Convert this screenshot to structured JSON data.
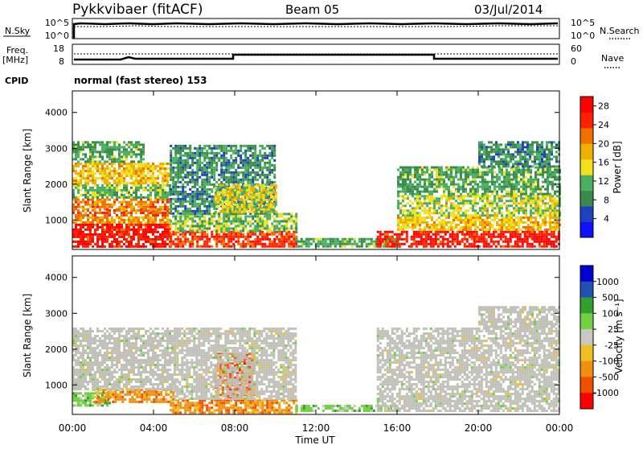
{
  "header": {
    "radar": "Pykkvibaer (fitACF)",
    "beam": "Beam 05",
    "date": "03/Jul/2014"
  },
  "top_panels": {
    "nsky_label": "N.Sky",
    "nsky_ticks": [
      "10^5",
      "10^0"
    ],
    "nsearch_ticks": [
      "10^5",
      "10^0"
    ],
    "nsearch_label": "N.Search",
    "freq_label": "Freq.",
    "freq_unit": "[MHz]",
    "freq_ticks": [
      "18",
      "8"
    ],
    "nave_ticks": [
      "60",
      "0"
    ],
    "nave_label": "Nave",
    "cpid_label": "CPID",
    "cpid_text": "normal (fast stereo) 153"
  },
  "colors": {
    "power_scale": [
      "#1010ff",
      "#2040c0",
      "#3a8a4a",
      "#48b060",
      "#f0e020",
      "#f0b000",
      "#f07000",
      "#ff2000",
      "#ff0000"
    ],
    "velocity_scale": [
      "#0000d0",
      "#2050b0",
      "#30a030",
      "#70d040",
      "#c8c8c0",
      "#f0c020",
      "#f09010",
      "#f05000",
      "#ff0000"
    ],
    "ground_scatter": "#c0c0b8"
  },
  "chart_data": [
    {
      "type": "heatmap",
      "name": "power-panel",
      "xlabel": "",
      "ylabel": "Slant Range [km]",
      "x_range": [
        "00:00",
        "24:00"
      ],
      "ylim": [
        180,
        4600
      ],
      "yticks": [
        "1000",
        "2000",
        "3000",
        "4000"
      ],
      "colorbar": {
        "label": "Power [dB]",
        "ticks": [
          "4",
          "8",
          "12",
          "16",
          "20",
          "24",
          "28"
        ],
        "range": [
          0,
          30
        ]
      },
      "regions": [
        {
          "t": [
            0,
            4.8
          ],
          "r": [
            250,
            900
          ],
          "level": 28
        },
        {
          "t": [
            0,
            4.8
          ],
          "r": [
            900,
            1100
          ],
          "level": 20
        },
        {
          "t": [
            0,
            4.8
          ],
          "r": [
            1100,
            1300
          ],
          "level": 24
        },
        {
          "t": [
            0,
            4.8
          ],
          "r": [
            1300,
            1600
          ],
          "level": 22
        },
        {
          "t": [
            0,
            4.8
          ],
          "r": [
            1600,
            2000
          ],
          "level": 12
        },
        {
          "t": [
            0,
            4.8
          ],
          "r": [
            2000,
            2600
          ],
          "level": 18
        },
        {
          "t": [
            0,
            3.5
          ],
          "r": [
            2600,
            3200
          ],
          "level": 10
        },
        {
          "t": [
            4.8,
            11
          ],
          "r": [
            250,
            700
          ],
          "level": 26
        },
        {
          "t": [
            4.8,
            11
          ],
          "r": [
            700,
            1200
          ],
          "level": 12
        },
        {
          "t": [
            4.8,
            10
          ],
          "r": [
            1200,
            3100
          ],
          "level": 8
        },
        {
          "t": [
            7,
            10
          ],
          "r": [
            1200,
            2000
          ],
          "level": 16
        },
        {
          "t": [
            11,
            16
          ],
          "r": [
            250,
            500
          ],
          "level": 10
        },
        {
          "t": [
            15,
            24
          ],
          "r": [
            250,
            700
          ],
          "level": 28
        },
        {
          "t": [
            16,
            24
          ],
          "r": [
            700,
            1100
          ],
          "level": 18
        },
        {
          "t": [
            16,
            24
          ],
          "r": [
            1100,
            1700
          ],
          "level": 14
        },
        {
          "t": [
            16,
            24
          ],
          "r": [
            1700,
            2500
          ],
          "level": 10
        },
        {
          "t": [
            20,
            24
          ],
          "r": [
            2500,
            3200
          ],
          "level": 8
        }
      ]
    },
    {
      "type": "heatmap",
      "name": "velocity-panel",
      "xlabel": "Time UT",
      "ylabel": "Slant Range [km]",
      "x_range": [
        "00:00",
        "24:00"
      ],
      "xticks": [
        "00:00",
        "04:00",
        "08:00",
        "12:00",
        "16:00",
        "20:00",
        "00:00"
      ],
      "ylim": [
        180,
        4600
      ],
      "yticks": [
        "1000",
        "2000",
        "3000",
        "4000"
      ],
      "colorbar": {
        "label": "Velocity [m s⁻¹]",
        "ticks": [
          "1000",
          "500",
          "100",
          "25",
          "-25",
          "-100",
          "-500",
          "-1000"
        ]
      },
      "regions": [
        {
          "t": [
            0,
            2
          ],
          "r": [
            400,
            800
          ],
          "level": 100
        },
        {
          "t": [
            1,
            5
          ],
          "r": [
            500,
            900
          ],
          "level": -100
        },
        {
          "t": [
            0,
            5
          ],
          "r": [
            900,
            2600
          ],
          "level": 0
        },
        {
          "t": [
            4.8,
            11
          ],
          "r": [
            250,
            600
          ],
          "level": -100
        },
        {
          "t": [
            7,
            9
          ],
          "r": [
            600,
            1900
          ],
          "level": -500
        },
        {
          "t": [
            5,
            11
          ],
          "r": [
            600,
            2600
          ],
          "level": 0
        },
        {
          "t": [
            11,
            16
          ],
          "r": [
            250,
            450
          ],
          "level": 100
        },
        {
          "t": [
            15,
            24
          ],
          "r": [
            300,
            2600
          ],
          "level": 0
        },
        {
          "t": [
            20,
            24
          ],
          "r": [
            2600,
            3200
          ],
          "level": 0
        }
      ]
    }
  ]
}
